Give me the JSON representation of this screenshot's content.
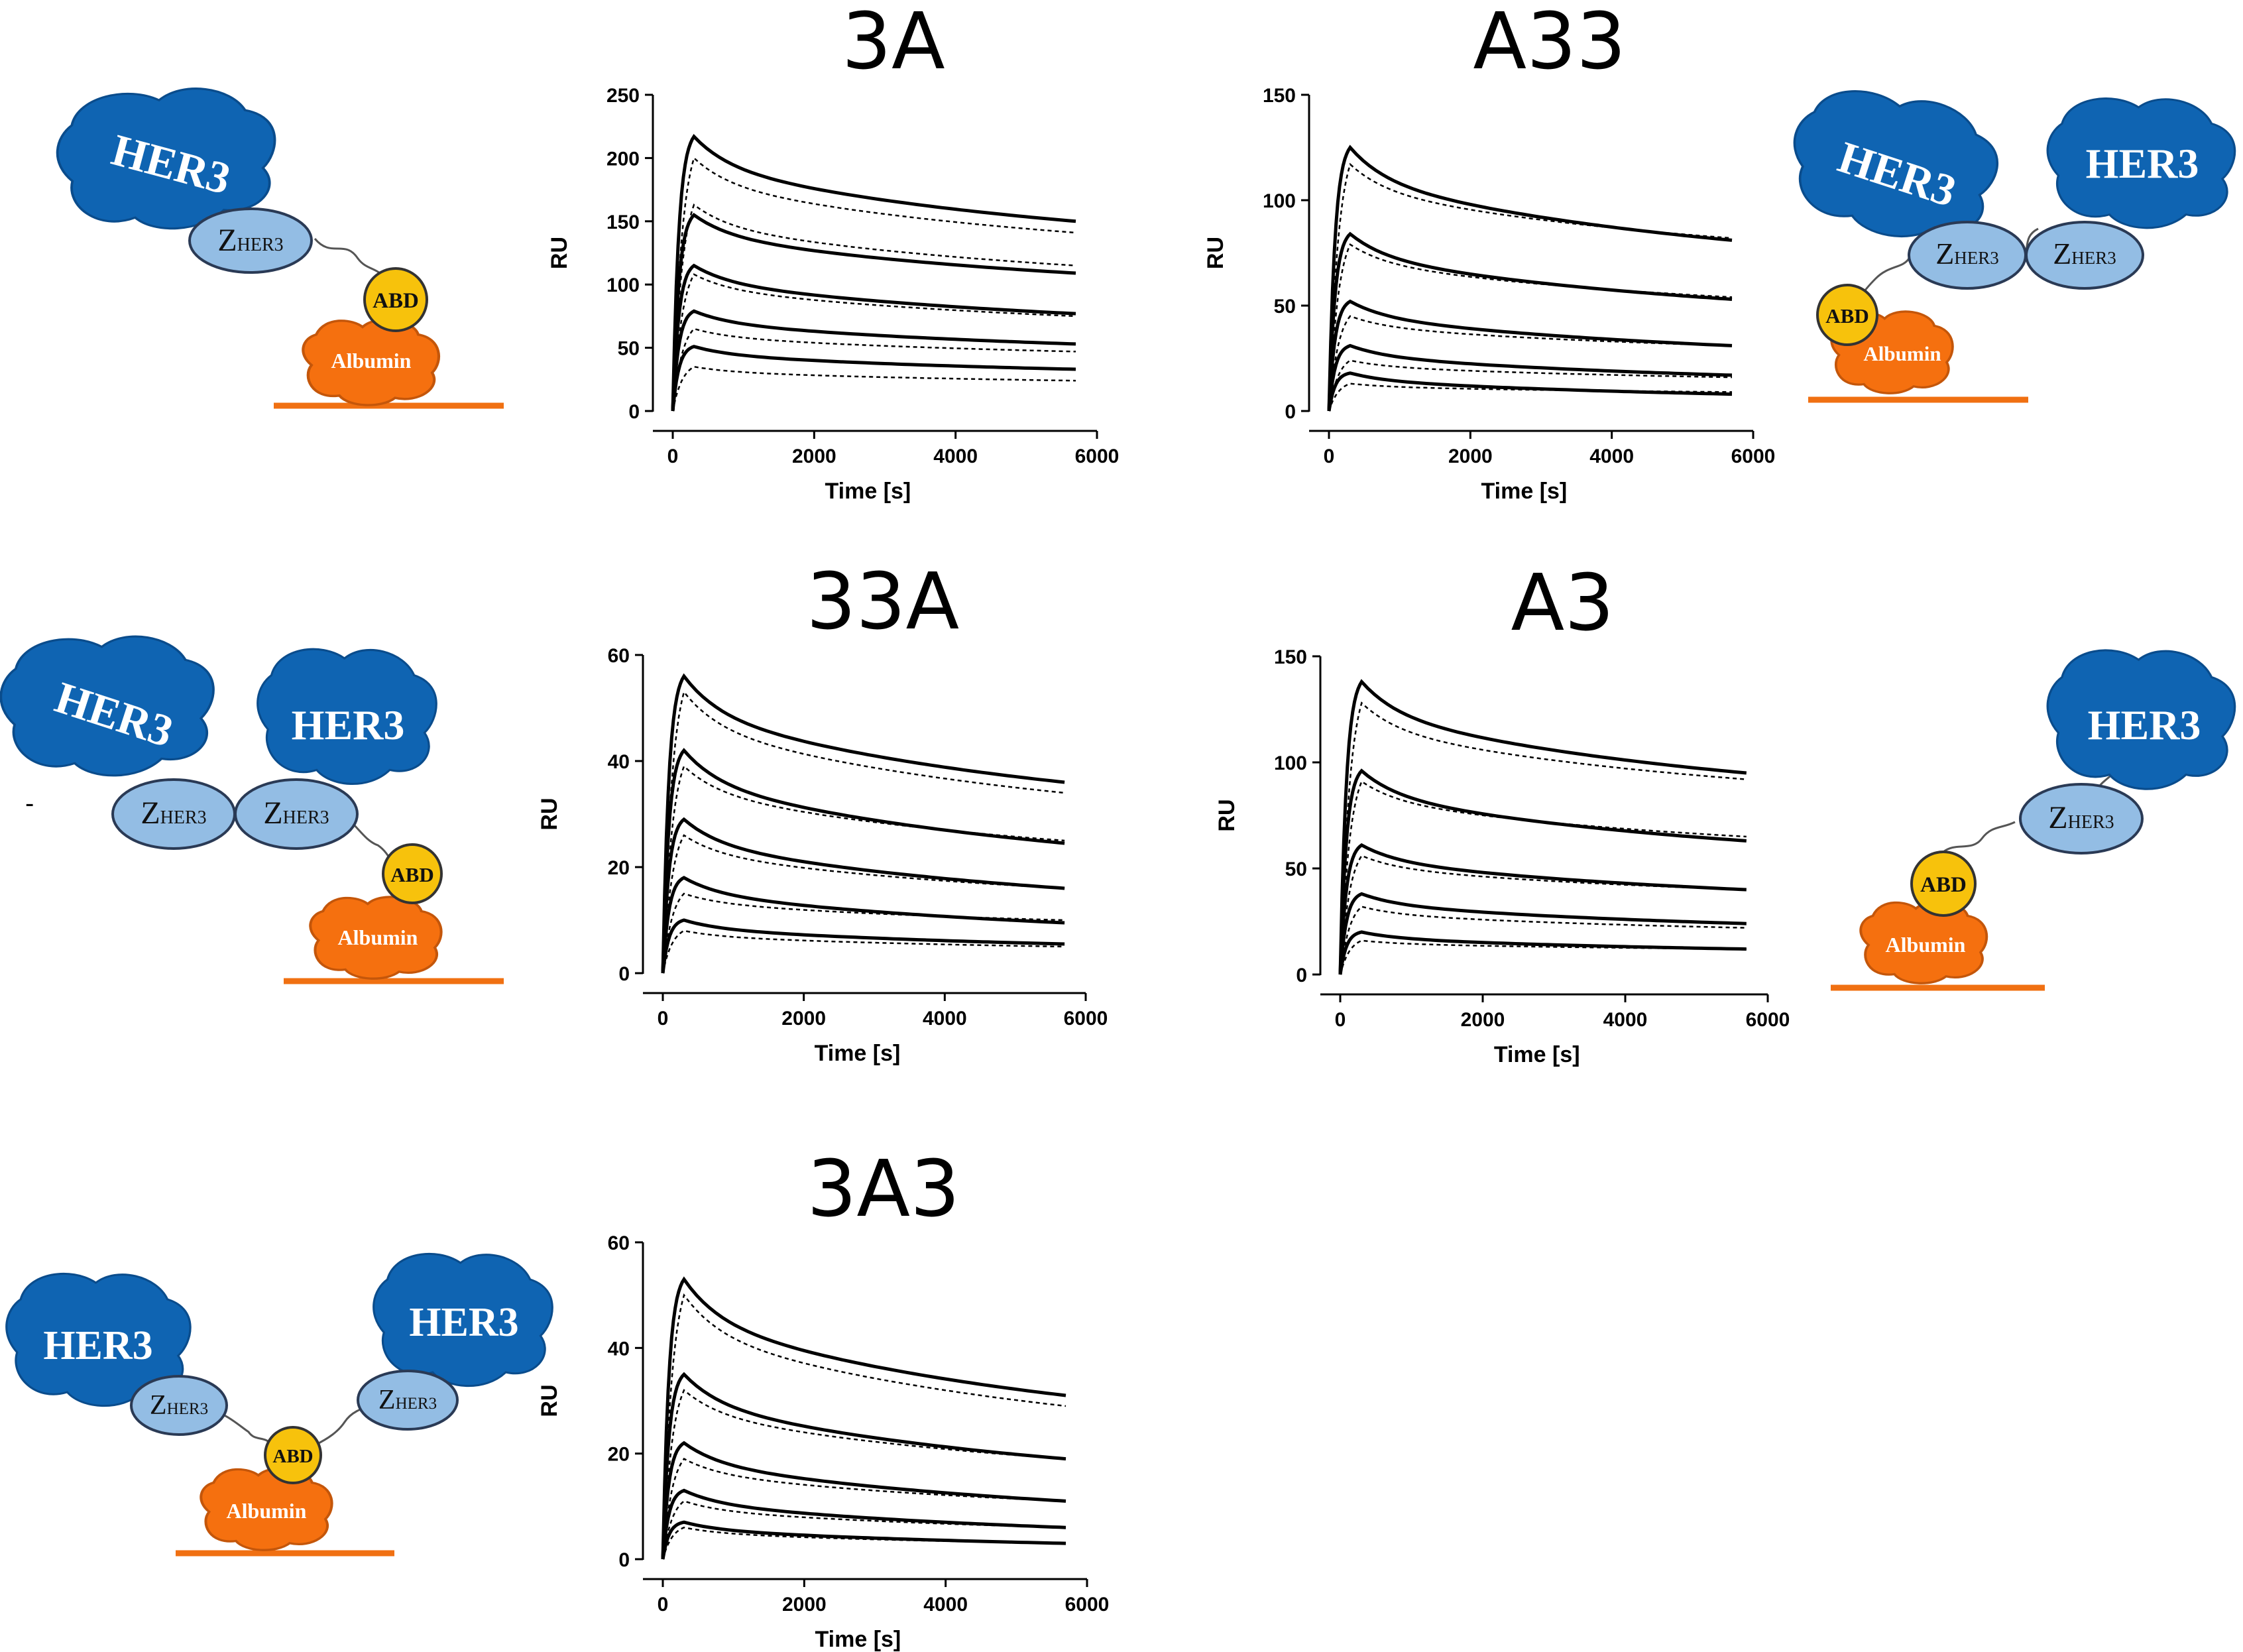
{
  "schematic": {
    "her3_label": "HER3",
    "z_label_main": "Z",
    "z_label_sub": "HER3",
    "abd_label": "ABD",
    "albumin_label": "Albumin",
    "colors": {
      "her3": "#0f64b2",
      "her3_edge": "#0a4c8c",
      "z_domain": "#93bde4",
      "abd": "#f7c20c",
      "albumin": "#f5700f",
      "surface": "#f07012",
      "linker": "#555555"
    }
  },
  "chart_data": [
    {
      "type": "line",
      "title": "3A",
      "xlabel": "Time [s]",
      "ylabel": "RU",
      "xlim": [
        0,
        6000
      ],
      "ylim": [
        0,
        250
      ],
      "xticks": [
        0,
        2000,
        4000,
        6000
      ],
      "yticks": [
        0,
        50,
        100,
        150,
        200,
        250
      ],
      "injection_end_s": 300,
      "series": [
        {
          "measured": {
            "peak": 217,
            "end": 150
          },
          "fit": {
            "peak": 200,
            "end": 141
          }
        },
        {
          "measured": {
            "peak": 155,
            "end": 109
          },
          "fit": {
            "peak": 163,
            "end": 115
          }
        },
        {
          "measured": {
            "peak": 115,
            "end": 77
          },
          "fit": {
            "peak": 108,
            "end": 75
          }
        },
        {
          "measured": {
            "peak": 79,
            "end": 53
          },
          "fit": {
            "peak": 65,
            "end": 47
          }
        },
        {
          "measured": {
            "peak": 51,
            "end": 33
          },
          "fit": {
            "peak": 35,
            "end": 24
          }
        }
      ]
    },
    {
      "type": "line",
      "title": "A33",
      "xlabel": "Time [s]",
      "ylabel": "RU",
      "xlim": [
        0,
        6000
      ],
      "ylim": [
        0,
        150
      ],
      "xticks": [
        0,
        2000,
        4000,
        6000
      ],
      "yticks": [
        0,
        50,
        100,
        150
      ],
      "injection_end_s": 300,
      "series": [
        {
          "measured": {
            "peak": 125,
            "end": 81
          },
          "fit": {
            "peak": 117,
            "end": 82
          }
        },
        {
          "measured": {
            "peak": 84,
            "end": 53
          },
          "fit": {
            "peak": 79,
            "end": 54
          }
        },
        {
          "measured": {
            "peak": 52,
            "end": 31
          },
          "fit": {
            "peak": 45,
            "end": 31
          }
        },
        {
          "measured": {
            "peak": 31,
            "end": 17
          },
          "fit": {
            "peak": 24,
            "end": 16
          }
        },
        {
          "measured": {
            "peak": 18,
            "end": 8
          },
          "fit": {
            "peak": 13,
            "end": 9
          }
        }
      ]
    },
    {
      "type": "line",
      "title": "33A",
      "xlabel": "Time [s]",
      "ylabel": "RU",
      "xlim": [
        0,
        6000
      ],
      "ylim": [
        0,
        60
      ],
      "xticks": [
        0,
        2000,
        4000,
        6000
      ],
      "yticks": [
        0,
        20,
        40,
        60
      ],
      "injection_end_s": 300,
      "series": [
        {
          "measured": {
            "peak": 56,
            "end": 36
          },
          "fit": {
            "peak": 53,
            "end": 34
          }
        },
        {
          "measured": {
            "peak": 42,
            "end": 24.5
          },
          "fit": {
            "peak": 39,
            "end": 25
          }
        },
        {
          "measured": {
            "peak": 29,
            "end": 16
          },
          "fit": {
            "peak": 26,
            "end": 16
          }
        },
        {
          "measured": {
            "peak": 18,
            "end": 9.5
          },
          "fit": {
            "peak": 15,
            "end": 10
          }
        },
        {
          "measured": {
            "peak": 10,
            "end": 5.5
          },
          "fit": {
            "peak": 8,
            "end": 5
          }
        }
      ]
    },
    {
      "type": "line",
      "title": "A3",
      "xlabel": "Time [s]",
      "ylabel": "RU",
      "xlim": [
        0,
        6000
      ],
      "ylim": [
        0,
        150
      ],
      "xticks": [
        0,
        2000,
        4000,
        6000
      ],
      "yticks": [
        0,
        50,
        100,
        150
      ],
      "injection_end_s": 300,
      "series": [
        {
          "measured": {
            "peak": 138,
            "end": 95
          },
          "fit": {
            "peak": 128,
            "end": 92
          }
        },
        {
          "measured": {
            "peak": 96,
            "end": 63
          },
          "fit": {
            "peak": 91,
            "end": 65
          }
        },
        {
          "measured": {
            "peak": 61,
            "end": 40
          },
          "fit": {
            "peak": 56,
            "end": 40
          }
        },
        {
          "measured": {
            "peak": 38,
            "end": 24
          },
          "fit": {
            "peak": 32,
            "end": 22
          }
        },
        {
          "measured": {
            "peak": 20,
            "end": 12
          },
          "fit": {
            "peak": 16,
            "end": 12
          }
        }
      ]
    },
    {
      "type": "line",
      "title": "3A3",
      "xlabel": "Time [s]",
      "ylabel": "RU",
      "xlim": [
        0,
        6000
      ],
      "ylim": [
        0,
        60
      ],
      "xticks": [
        0,
        2000,
        4000,
        6000
      ],
      "yticks": [
        0,
        20,
        40,
        60
      ],
      "injection_end_s": 300,
      "series": [
        {
          "measured": {
            "peak": 53,
            "end": 31
          },
          "fit": {
            "peak": 50,
            "end": 29
          }
        },
        {
          "measured": {
            "peak": 35,
            "end": 19
          },
          "fit": {
            "peak": 32,
            "end": 19
          }
        },
        {
          "measured": {
            "peak": 22,
            "end": 11
          },
          "fit": {
            "peak": 19,
            "end": 11
          }
        },
        {
          "measured": {
            "peak": 13,
            "end": 6
          },
          "fit": {
            "peak": 11,
            "end": 6
          }
        },
        {
          "measured": {
            "peak": 7,
            "end": 3
          },
          "fit": {
            "peak": 6,
            "end": 3
          }
        }
      ]
    }
  ]
}
